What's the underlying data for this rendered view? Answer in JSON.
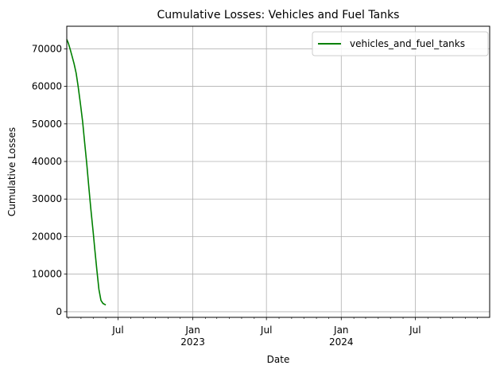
{
  "chart_data": {
    "type": "line",
    "title": "Cumulative Losses: Vehicles and Fuel Tanks",
    "xlabel": "Date",
    "ylabel": "Cumulative Losses",
    "xlim": [
      "2022-02-25",
      "2024-12-31"
    ],
    "ylim": [
      -1500,
      76000
    ],
    "grid": true,
    "legend_position": "top-right",
    "yticks": [
      0,
      10000,
      20000,
      30000,
      40000,
      50000,
      60000,
      70000
    ],
    "ytick_labels": [
      "0",
      "10000",
      "20000",
      "30000",
      "40000",
      "50000",
      "60000",
      "70000"
    ],
    "xticks": [
      {
        "date": "2022-07-01",
        "label": "Jul"
      },
      {
        "date": "2023-01-01",
        "label": "Jan\n2023"
      },
      {
        "date": "2023-07-01",
        "label": "Jul"
      },
      {
        "date": "2024-01-01",
        "label": "Jan\n2024"
      },
      {
        "date": "2024-07-01",
        "label": "Jul"
      }
    ],
    "series": [
      {
        "name": "vehicles_and_fuel_tanks",
        "color": "#008000",
        "x": [
          "2022-02-25",
          "2022-03-01",
          "2022-03-05",
          "2022-03-10",
          "2022-03-15",
          "2022-03-20",
          "2022-03-25",
          "2022-03-31",
          "2022-04-05",
          "2022-04-10",
          "2022-04-15",
          "2022-04-20",
          "2022-04-25",
          "2022-05-01",
          "2022-05-05",
          "2022-05-10",
          "2022-05-15",
          "2022-05-20",
          "2022-05-25",
          "2022-06-01"
        ],
        "y": [
          72500,
          71500,
          70000,
          68000,
          66000,
          63500,
          60000,
          55000,
          50500,
          45000,
          39500,
          33500,
          27500,
          21000,
          16500,
          11000,
          6000,
          3000,
          2200,
          1800
        ]
      }
    ]
  }
}
